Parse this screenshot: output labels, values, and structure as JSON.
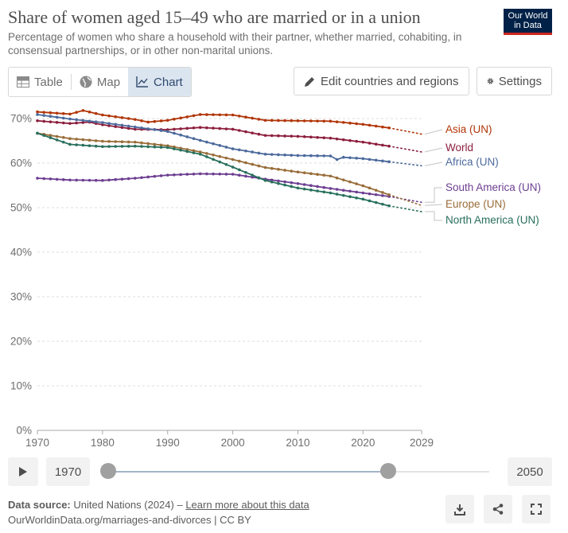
{
  "header": {
    "title": "Share of women aged 15–49 who are married or in a union",
    "subtitle": "Percentage of women who share a household with their partner, whether married, cohabiting, in consensual partnerships, or in other non-marital unions.",
    "logo_line1": "Our World",
    "logo_line2": "in Data"
  },
  "tabs": [
    {
      "label": "Table",
      "icon": "table-icon"
    },
    {
      "label": "Map",
      "icon": "globe-icon"
    },
    {
      "label": "Chart",
      "icon": "line-chart-icon",
      "active": true
    }
  ],
  "controls": {
    "edit_label": "Edit countries and regions",
    "settings_label": "Settings"
  },
  "timeline": {
    "start_year": "1970",
    "end_year": "2050"
  },
  "footer": {
    "source_label": "Data source:",
    "source_text": "United Nations (2024) –",
    "source_link": "Learn more about this data",
    "url_line": "OurWorldinData.org/marriages-and-divorces | CC BY"
  },
  "chart_data": {
    "type": "line",
    "x_ticks": [
      1970,
      1980,
      1990,
      2000,
      2010,
      2020,
      2029
    ],
    "y_ticks": [
      0,
      10,
      20,
      30,
      40,
      50,
      60,
      70
    ],
    "y_tick_format": "%",
    "xlim": [
      1970,
      2029
    ],
    "ylim": [
      0,
      72
    ],
    "grid": "horizontal-dashed",
    "legend": "right, labels at line ends",
    "projection_start": 2024,
    "series": [
      {
        "name": "Asia (UN)",
        "color": "#b13507",
        "points": [
          [
            1970,
            71.5
          ],
          [
            1975,
            71.0
          ],
          [
            1977,
            71.8
          ],
          [
            1980,
            70.8
          ],
          [
            1985,
            69.8
          ],
          [
            1987,
            69.2
          ],
          [
            1990,
            69.6
          ],
          [
            1995,
            70.9
          ],
          [
            2000,
            70.8
          ],
          [
            2005,
            69.6
          ],
          [
            2010,
            69.5
          ],
          [
            2015,
            69.4
          ],
          [
            2020,
            68.7
          ],
          [
            2024,
            67.9
          ]
        ],
        "projection": [
          [
            2024,
            67.9
          ],
          [
            2029,
            66.5
          ]
        ]
      },
      {
        "name": "World",
        "color": "#8c1e3d",
        "points": [
          [
            1970,
            69.5
          ],
          [
            1975,
            68.9
          ],
          [
            1978,
            69.2
          ],
          [
            1980,
            68.6
          ],
          [
            1985,
            67.6
          ],
          [
            1990,
            67.5
          ],
          [
            1995,
            68.0
          ],
          [
            2000,
            67.6
          ],
          [
            2005,
            66.2
          ],
          [
            2010,
            66.0
          ],
          [
            2015,
            65.6
          ],
          [
            2020,
            64.7
          ],
          [
            2024,
            63.8
          ]
        ],
        "projection": [
          [
            2024,
            63.8
          ],
          [
            2029,
            62.5
          ]
        ]
      },
      {
        "name": "Africa (UN)",
        "color": "#4c6a9c",
        "points": [
          [
            1970,
            70.9
          ],
          [
            1975,
            69.9
          ],
          [
            1980,
            69.1
          ],
          [
            1985,
            68.1
          ],
          [
            1990,
            67.1
          ],
          [
            1995,
            65.1
          ],
          [
            2000,
            63.2
          ],
          [
            2005,
            62.0
          ],
          [
            2010,
            61.7
          ],
          [
            2015,
            61.6
          ],
          [
            2016,
            60.8
          ],
          [
            2017,
            61.3
          ],
          [
            2020,
            61.0
          ],
          [
            2024,
            60.3
          ]
        ],
        "projection": [
          [
            2024,
            60.3
          ],
          [
            2029,
            59.4
          ]
        ]
      },
      {
        "name": "South America (UN)",
        "color": "#6d3e91",
        "points": [
          [
            1970,
            56.6
          ],
          [
            1975,
            56.2
          ],
          [
            1980,
            56.1
          ],
          [
            1985,
            56.6
          ],
          [
            1990,
            57.3
          ],
          [
            1995,
            57.6
          ],
          [
            2000,
            57.5
          ],
          [
            2005,
            56.4
          ],
          [
            2010,
            55.4
          ],
          [
            2015,
            54.3
          ],
          [
            2020,
            53.3
          ],
          [
            2024,
            52.5
          ]
        ],
        "projection": [
          [
            2024,
            52.5
          ],
          [
            2029,
            51.2
          ]
        ]
      },
      {
        "name": "Europe (UN)",
        "color": "#996d39",
        "points": [
          [
            1970,
            66.7
          ],
          [
            1975,
            65.5
          ],
          [
            1980,
            64.9
          ],
          [
            1985,
            64.7
          ],
          [
            1990,
            63.9
          ],
          [
            1995,
            62.5
          ],
          [
            2000,
            60.8
          ],
          [
            2005,
            59.0
          ],
          [
            2010,
            58.0
          ],
          [
            2015,
            57.1
          ],
          [
            2020,
            54.9
          ],
          [
            2024,
            52.9
          ]
        ],
        "projection": [
          [
            2024,
            52.9
          ],
          [
            2029,
            50.5
          ]
        ]
      },
      {
        "name": "North America (UN)",
        "color": "#286f5c",
        "points": [
          [
            1970,
            66.7
          ],
          [
            1975,
            64.2
          ],
          [
            1980,
            63.7
          ],
          [
            1985,
            63.8
          ],
          [
            1990,
            63.5
          ],
          [
            1995,
            62.0
          ],
          [
            2000,
            59.1
          ],
          [
            2005,
            56.1
          ],
          [
            2010,
            54.4
          ],
          [
            2015,
            53.3
          ],
          [
            2020,
            51.9
          ],
          [
            2024,
            50.4
          ]
        ],
        "projection": [
          [
            2024,
            50.4
          ],
          [
            2029,
            49.1
          ]
        ]
      }
    ]
  }
}
